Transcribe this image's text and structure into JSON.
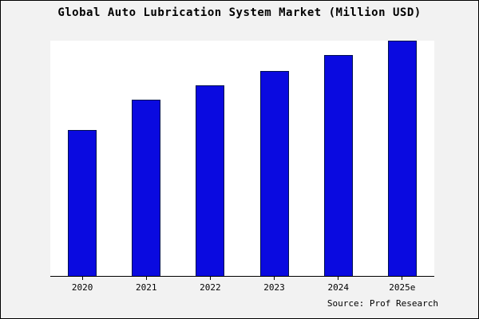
{
  "title": "Global Auto Lubrication System Market (Million USD)",
  "source": "Source: Prof Research",
  "colors": {
    "background": "#f2f2f2",
    "plot_background": "#ffffff",
    "bar_fill": "#0a0ae0",
    "bar_border": "#001050",
    "axis": "#000000"
  },
  "chart_data": {
    "type": "bar",
    "title": "Global Auto Lubrication System Market (Million USD)",
    "categories": [
      "2020",
      "2021",
      "2022",
      "2023",
      "2024",
      "2025e"
    ],
    "values": [
      62,
      75,
      81,
      87,
      94,
      100
    ],
    "xlabel": "",
    "ylabel": "",
    "ylim": [
      0,
      100
    ],
    "grid": false,
    "legend": false,
    "annotations": [
      "Source: Prof Research"
    ]
  }
}
